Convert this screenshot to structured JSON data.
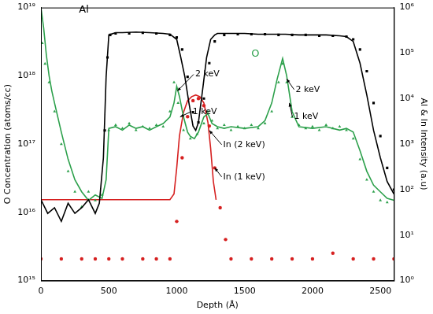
{
  "chart_data": {
    "type": "scatter",
    "x_label": "Depth (Å)",
    "y_label": "O Concentration (atoms/cc)",
    "y2_label": "Al & In Intensity (a.u)",
    "log": "y",
    "grid": false,
    "xlim": [
      0,
      2600
    ],
    "xticks": [
      0,
      500,
      1000,
      1500,
      2000,
      2500
    ],
    "ylim": [
      1000000000000000.0,
      1e+19
    ],
    "yticks": [
      {
        "value": 1000000000000000.0,
        "label": "10¹⁵"
      },
      {
        "value": 1e+16,
        "label": "10¹⁶"
      },
      {
        "value": 1e+17,
        "label": "10¹⁷"
      },
      {
        "value": 1e+18,
        "label": "10¹⁸"
      },
      {
        "value": 1e+19,
        "label": "10¹⁹"
      }
    ],
    "y2lim": [
      1,
      1000000
    ],
    "y2ticks": [
      {
        "value": 1,
        "label": "10⁰"
      },
      {
        "value": 10,
        "label": "10¹"
      },
      {
        "value": 100,
        "label": "10²"
      },
      {
        "value": 1000,
        "label": "10³"
      },
      {
        "value": 10000,
        "label": "10⁴"
      },
      {
        "value": 100000,
        "label": "10⁵"
      },
      {
        "value": 1000000,
        "label": "10⁶"
      }
    ],
    "series": [
      {
        "color": "#000000",
        "axis": "y2",
        "marker": "none",
        "line_style": "solid",
        "x": [
          0,
          50,
          100,
          150,
          200,
          250,
          300,
          350,
          400,
          430,
          460,
          480,
          500,
          550,
          600,
          700,
          800,
          900,
          950,
          1000,
          1030,
          1060,
          1090,
          1120,
          1140,
          1160,
          1190,
          1220,
          1250,
          1280,
          1300,
          1400,
          1500,
          1600,
          1700,
          1800,
          1900,
          2000,
          2100,
          2200,
          2250,
          2300,
          2350,
          2400,
          2450,
          2500,
          2550,
          2600
        ],
        "values": [
          60,
          30,
          40,
          20,
          50,
          30,
          40,
          60,
          30,
          50,
          500,
          30000,
          250000,
          280000,
          280000,
          290000,
          280000,
          270000,
          260000,
          200000,
          80000,
          30000,
          8000,
          2500,
          2000,
          3000,
          15000,
          80000,
          200000,
          250000,
          270000,
          270000,
          270000,
          260000,
          260000,
          260000,
          250000,
          250000,
          250000,
          240000,
          230000,
          180000,
          60000,
          12000,
          2000,
          500,
          150,
          80
        ]
      },
      {
        "color": "#000000",
        "axis": "y2",
        "marker": "square",
        "line_style": "none",
        "x": [
          470,
          490,
          510,
          550,
          650,
          750,
          850,
          950,
          1000,
          1040,
          1080,
          1120,
          1160,
          1200,
          1240,
          1280,
          1350,
          1450,
          1550,
          1650,
          1750,
          1850,
          1950,
          2050,
          2150,
          2250,
          2300,
          2350,
          2400,
          2450,
          2500,
          2550,
          2600
        ],
        "values": [
          2000,
          80000,
          250000,
          270000,
          270000,
          280000,
          270000,
          250000,
          220000,
          120000,
          30000,
          5000,
          3000,
          10000,
          60000,
          180000,
          250000,
          260000,
          260000,
          260000,
          250000,
          250000,
          250000,
          240000,
          240000,
          230000,
          200000,
          120000,
          40000,
          8000,
          1500,
          300,
          100
        ]
      },
      {
        "color": "#2ca04b",
        "axis": "y",
        "marker": "none",
        "line_style": "solid",
        "x": [
          0,
          20,
          40,
          60,
          80,
          100,
          150,
          200,
          250,
          300,
          350,
          400,
          450,
          480,
          500,
          550,
          600,
          650,
          700,
          750,
          800,
          850,
          900,
          950,
          980,
          1000,
          1020,
          1050,
          1080,
          1100,
          1130,
          1160,
          1200,
          1230,
          1260,
          1300,
          1350,
          1400,
          1500,
          1600,
          1650,
          1700,
          1740,
          1780,
          1810,
          1850,
          1900,
          2000,
          2100,
          2200,
          2250,
          2300,
          2350,
          2400,
          2450,
          2500,
          2550,
          2600
        ],
        "values": [
          1e+19,
          5e+18,
          2e+18,
          1e+18,
          6e+17,
          4e+17,
          1.5e+17,
          6e+16,
          3e+16,
          2e+16,
          1.5e+16,
          1.8e+16,
          1.6e+16,
          3e+16,
          1.7e+17,
          1.8e+17,
          1.6e+17,
          1.9e+17,
          1.7e+17,
          1.8e+17,
          1.6e+17,
          1.8e+17,
          2e+17,
          2.5e+17,
          4e+17,
          7e+17,
          5e+17,
          2.5e+17,
          1.5e+17,
          1.3e+17,
          1.2e+17,
          1.5e+17,
          2.5e+17,
          2.8e+17,
          2e+17,
          1.8e+17,
          1.7e+17,
          1.8e+17,
          1.7e+17,
          1.8e+17,
          2.2e+17,
          4e+17,
          9e+17,
          1.8e+18,
          1e+18,
          3e+17,
          1.8e+17,
          1.7e+17,
          1.8e+17,
          1.6e+17,
          1.7e+17,
          1.5e+17,
          8e+16,
          4e+16,
          2.5e+16,
          2e+16,
          1.6e+16,
          1.5e+16
        ]
      },
      {
        "color": "#2ca04b",
        "axis": "y",
        "marker": "triangle",
        "line_style": "none",
        "x": [
          10,
          30,
          60,
          100,
          150,
          200,
          250,
          300,
          350,
          400,
          450,
          500,
          550,
          600,
          650,
          700,
          750,
          800,
          850,
          900,
          950,
          980,
          1010,
          1050,
          1100,
          1150,
          1200,
          1230,
          1260,
          1300,
          1350,
          1400,
          1450,
          1500,
          1550,
          1600,
          1650,
          1700,
          1750,
          1780,
          1810,
          1850,
          1900,
          1950,
          2000,
          2050,
          2100,
          2150,
          2200,
          2250,
          2300,
          2350,
          2400,
          2450,
          2500,
          2550
        ],
        "values": [
          3e+18,
          1.5e+18,
          8e+17,
          3e+17,
          1e+17,
          4e+16,
          2e+16,
          1.2e+16,
          2e+16,
          1.5e+16,
          1.8e+16,
          1.6e+17,
          1.9e+17,
          1.7e+17,
          2e+17,
          1.6e+17,
          1.8e+17,
          1.7e+17,
          1.9e+17,
          1.8e+17,
          3e+17,
          8e+17,
          4e+17,
          1.6e+17,
          1.2e+17,
          1.4e+17,
          2e+17,
          3e+17,
          2.2e+17,
          1.7e+17,
          1.9e+17,
          1.6e+17,
          1.8e+17,
          1.7e+17,
          1.9e+17,
          1.7e+17,
          2e+17,
          3e+17,
          8e+17,
          1.5e+18,
          8e+17,
          2.5e+17,
          1.9e+17,
          1.7e+17,
          1.8e+17,
          1.6e+17,
          1.9e+17,
          1.7e+17,
          1.8e+17,
          1.6e+17,
          1.2e+17,
          6e+16,
          3e+16,
          2e+16,
          1.5e+16,
          1.4e+16
        ]
      },
      {
        "color": "#d62020",
        "axis": "y2",
        "marker": "none",
        "line_style": "solid",
        "x": [
          0,
          900,
          950,
          980,
          1000,
          1020,
          1050,
          1080,
          1110,
          1140,
          1170,
          1200,
          1230,
          1250,
          1270,
          1290
        ],
        "values": [
          60,
          60,
          60,
          80,
          300,
          1500,
          5000,
          9000,
          11000,
          12000,
          11000,
          8000,
          3000,
          800,
          150,
          60
        ]
      },
      {
        "color": "#d62020",
        "axis": "y2",
        "marker": "circle",
        "line_style": "none",
        "x": [
          0,
          150,
          300,
          400,
          500,
          600,
          750,
          850,
          950,
          1000,
          1040,
          1080,
          1120,
          1160,
          1200,
          1240,
          1280,
          1320,
          1360,
          1400,
          1550,
          1700,
          1850,
          2000,
          2150,
          2300,
          2450,
          2600
        ],
        "values": [
          3,
          3,
          3,
          3,
          3,
          3,
          3,
          3,
          3,
          20,
          500,
          4000,
          9000,
          10000,
          7000,
          2500,
          300,
          40,
          8,
          3,
          3,
          3,
          3,
          3,
          4,
          3,
          3,
          3
        ]
      }
    ],
    "annotations": [
      {
        "text": "Al",
        "x": 280,
        "y": 870000,
        "axis": "y2",
        "color": "#000000"
      },
      {
        "text": "O",
        "x": 1550,
        "y": 2.1e+18,
        "axis": "y",
        "color": "#2ca04b"
      },
      {
        "text": "2 keV",
        "x": 1136,
        "y": 1.05e+18,
        "axis": "y",
        "color": "#000000",
        "arrow_to": [
          1005,
          6e+17
        ]
      },
      {
        "text": "1 keV",
        "x": 1118,
        "y": 3e+17,
        "axis": "y",
        "color": "#000000",
        "arrow_to": [
          1025,
          2.5e+17
        ]
      },
      {
        "text": "2 keV",
        "x": 1876,
        "y": 6.3e+17,
        "axis": "y",
        "color": "#000000",
        "arrow_to": [
          1810,
          9e+17
        ]
      },
      {
        "text": "1 keV",
        "x": 1864,
        "y": 2.5e+17,
        "axis": "y",
        "color": "#000000",
        "arrow_to": [
          1830,
          4e+17
        ]
      },
      {
        "text": "In (2 keV)",
        "x": 1343,
        "y": 970,
        "axis": "y2",
        "color": "#000000",
        "arrow_to": [
          1240,
          2000
        ]
      },
      {
        "text": "In (1 keV)",
        "x": 1343,
        "y": 190,
        "axis": "y2",
        "color": "#000000",
        "arrow_to": [
          1280,
          300
        ]
      }
    ]
  }
}
